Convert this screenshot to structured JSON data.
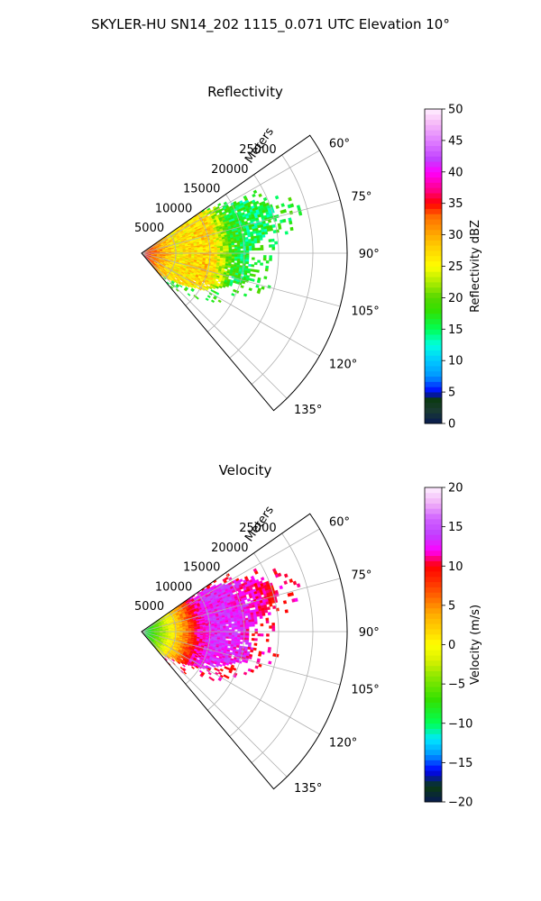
{
  "title": "SKYLER-HU  SN14_202  1115_0.071 UTC Elevation 10°",
  "chart_data": [
    {
      "type": "polar-sector",
      "title": "Reflectivity",
      "range_label": "Meters",
      "theta_range_deg": [
        55,
        140
      ],
      "theta_gridlines_deg": [
        60,
        75,
        90,
        105,
        120,
        135
      ],
      "theta_tick_labels": [
        "60°",
        "75°",
        "90°",
        "105°",
        "120°",
        "135°"
      ],
      "r_max": 30000,
      "r_gridlines": [
        5000,
        10000,
        15000,
        20000,
        25000
      ],
      "r_tick_labels": [
        "5000",
        "10000",
        "15000",
        "20000",
        "25000"
      ],
      "echo_extent": [
        {
          "theta": 55,
          "r": 10000
        },
        {
          "theta": 60,
          "r": 14000
        },
        {
          "theta": 65,
          "r": 18000
        },
        {
          "theta": 70,
          "r": 20000
        },
        {
          "theta": 75,
          "r": 20500
        },
        {
          "theta": 80,
          "r": 19000
        },
        {
          "theta": 85,
          "r": 16500
        },
        {
          "theta": 90,
          "r": 15500
        },
        {
          "theta": 95,
          "r": 15500
        },
        {
          "theta": 100,
          "r": 16500
        },
        {
          "theta": 105,
          "r": 16000
        },
        {
          "theta": 110,
          "r": 13500
        },
        {
          "theta": 115,
          "r": 12000
        },
        {
          "theta": 120,
          "r": 10500
        },
        {
          "theta": 125,
          "r": 8500
        },
        {
          "theta": 130,
          "r": 6500
        },
        {
          "theta": 135,
          "r": 5000
        },
        {
          "theta": 140,
          "r": 4000
        }
      ],
      "radial_profile": [
        {
          "r": 0,
          "value": 35
        },
        {
          "r": 2500,
          "value": 31
        },
        {
          "r": 5000,
          "value": 26
        },
        {
          "r": 7500,
          "value": 27
        },
        {
          "r": 10000,
          "value": 28
        },
        {
          "r": 12000,
          "value": 22
        },
        {
          "r": 13500,
          "value": 17
        },
        {
          "r": 15000,
          "value": 16
        },
        {
          "r": 20000,
          "value": 16
        }
      ],
      "colorbar": {
        "label": "Reflectivity dBZ",
        "min": 0,
        "max": 50,
        "ticks": [
          "0",
          "5",
          "10",
          "15",
          "20",
          "25",
          "30",
          "35",
          "40",
          "45",
          "50"
        ],
        "colors": [
          {
            "v": 0,
            "c": "#081a52"
          },
          {
            "v": 2,
            "c": "#1a3a32"
          },
          {
            "v": 4,
            "c": "#0a3a10"
          },
          {
            "v": 5,
            "c": "#0000ff"
          },
          {
            "v": 7.5,
            "c": "#0096ff"
          },
          {
            "v": 10,
            "c": "#00c8ff"
          },
          {
            "v": 12.5,
            "c": "#00ffe0"
          },
          {
            "v": 15,
            "c": "#00ff55"
          },
          {
            "v": 18,
            "c": "#33e000"
          },
          {
            "v": 20,
            "c": "#55d800"
          },
          {
            "v": 22,
            "c": "#9ee800"
          },
          {
            "v": 25,
            "c": "#ffff00"
          },
          {
            "v": 28,
            "c": "#ffd000"
          },
          {
            "v": 30,
            "c": "#ffaa00"
          },
          {
            "v": 33,
            "c": "#ff6a00"
          },
          {
            "v": 35,
            "c": "#ff0000"
          },
          {
            "v": 37,
            "c": "#ff0080"
          },
          {
            "v": 40,
            "c": "#ff00ff"
          },
          {
            "v": 42,
            "c": "#c040ff"
          },
          {
            "v": 45,
            "c": "#e080ff"
          },
          {
            "v": 48,
            "c": "#f8c0f8"
          },
          {
            "v": 50,
            "c": "#fff0ff"
          }
        ]
      }
    },
    {
      "type": "polar-sector",
      "title": "Velocity",
      "range_label": "Meters",
      "theta_range_deg": [
        55,
        140
      ],
      "theta_gridlines_deg": [
        60,
        75,
        90,
        105,
        120,
        135
      ],
      "theta_tick_labels": [
        "60°",
        "75°",
        "90°",
        "105°",
        "120°",
        "135°"
      ],
      "r_max": 30000,
      "r_gridlines": [
        5000,
        10000,
        15000,
        20000,
        25000
      ],
      "r_tick_labels": [
        "5000",
        "10000",
        "15000",
        "20000",
        "25000"
      ],
      "echo_extent": [
        {
          "theta": 55,
          "r": 10000
        },
        {
          "theta": 60,
          "r": 14000
        },
        {
          "theta": 65,
          "r": 18000
        },
        {
          "theta": 70,
          "r": 20000
        },
        {
          "theta": 75,
          "r": 20500
        },
        {
          "theta": 80,
          "r": 19000
        },
        {
          "theta": 85,
          "r": 16500
        },
        {
          "theta": 90,
          "r": 15500
        },
        {
          "theta": 95,
          "r": 15500
        },
        {
          "theta": 100,
          "r": 16500
        },
        {
          "theta": 105,
          "r": 16000
        },
        {
          "theta": 110,
          "r": 13500
        },
        {
          "theta": 115,
          "r": 12000
        },
        {
          "theta": 120,
          "r": 10500
        },
        {
          "theta": 125,
          "r": 8500
        },
        {
          "theta": 130,
          "r": 6500
        },
        {
          "theta": 135,
          "r": 5000
        },
        {
          "theta": 140,
          "r": 4000
        }
      ],
      "radial_profile": [
        {
          "r": 0,
          "value": -10
        },
        {
          "r": 2000,
          "value": -6
        },
        {
          "r": 3500,
          "value": -2
        },
        {
          "r": 5000,
          "value": 2
        },
        {
          "r": 6500,
          "value": 6
        },
        {
          "r": 8000,
          "value": 11
        },
        {
          "r": 10000,
          "value": 13
        },
        {
          "r": 13000,
          "value": 13
        },
        {
          "r": 16000,
          "value": 12
        },
        {
          "r": 20000,
          "value": 10
        }
      ],
      "colorbar": {
        "label": "Velocity (m/s)",
        "min": -20,
        "max": 20,
        "ticks": [
          "−20",
          "−15",
          "−10",
          "−5",
          "0",
          "5",
          "10",
          "15",
          "20"
        ],
        "colors": [
          {
            "v": -20,
            "c": "#081a52"
          },
          {
            "v": -18,
            "c": "#0a3a10"
          },
          {
            "v": -16,
            "c": "#0000ff"
          },
          {
            "v": -14,
            "c": "#0096ff"
          },
          {
            "v": -12,
            "c": "#00e8ff"
          },
          {
            "v": -10,
            "c": "#00ff55"
          },
          {
            "v": -7,
            "c": "#33e000"
          },
          {
            "v": -4,
            "c": "#8ee800"
          },
          {
            "v": -2,
            "c": "#d8f000"
          },
          {
            "v": 0,
            "c": "#ffff00"
          },
          {
            "v": 2,
            "c": "#ffd000"
          },
          {
            "v": 4,
            "c": "#ffaa00"
          },
          {
            "v": 6,
            "c": "#ff6a00"
          },
          {
            "v": 8,
            "c": "#ff3000"
          },
          {
            "v": 10,
            "c": "#ff0000"
          },
          {
            "v": 11,
            "c": "#ff0080"
          },
          {
            "v": 12,
            "c": "#ff00ff"
          },
          {
            "v": 14,
            "c": "#c040ff"
          },
          {
            "v": 16,
            "c": "#d060ff"
          },
          {
            "v": 18,
            "c": "#f0b0f8"
          },
          {
            "v": 20,
            "c": "#fff0ff"
          }
        ]
      }
    }
  ]
}
